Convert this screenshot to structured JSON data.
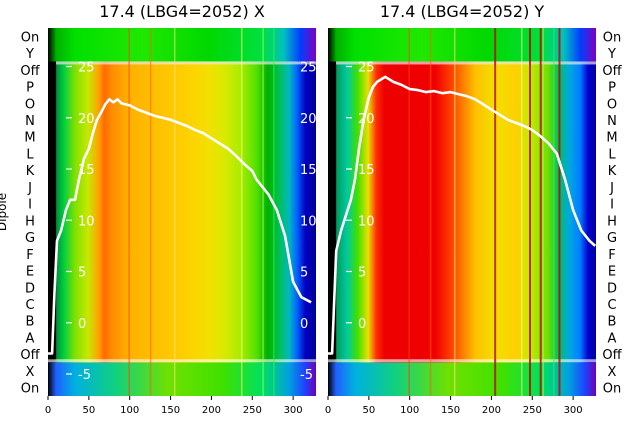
{
  "chart_data": [
    {
      "type": "heatmap",
      "title": "17.4 (LBG4=2052) X",
      "ylabel": "Dipole",
      "x_ticks": [
        0,
        50,
        100,
        150,
        200,
        250,
        300
      ],
      "xlim": [
        0,
        328
      ],
      "row_labels": [
        "On",
        "Y",
        "Off",
        "P",
        "O",
        "N",
        "M",
        "L",
        "K",
        "J",
        "I",
        "H",
        "G",
        "F",
        "E",
        "D",
        "C",
        "B",
        "A",
        "Off",
        "X",
        "On"
      ],
      "overlay_ticks": [
        -5,
        0,
        5,
        10,
        15,
        20,
        25
      ],
      "overlay_ylim": [
        -5,
        27
      ],
      "overlay_points": [
        [
          0,
          -3
        ],
        [
          5,
          -3
        ],
        [
          8,
          3
        ],
        [
          11,
          8
        ],
        [
          16,
          9
        ],
        [
          22,
          11
        ],
        [
          27,
          12
        ],
        [
          33,
          12
        ],
        [
          38,
          14
        ],
        [
          44,
          16
        ],
        [
          50,
          17
        ],
        [
          55,
          18.5
        ],
        [
          60,
          19.8
        ],
        [
          65,
          20.5
        ],
        [
          70,
          21.3
        ],
        [
          75,
          21.8
        ],
        [
          80,
          21.5
        ],
        [
          85,
          21.8
        ],
        [
          90,
          21.4
        ],
        [
          100,
          21.2
        ],
        [
          110,
          20.8
        ],
        [
          120,
          20.5
        ],
        [
          130,
          20.2
        ],
        [
          140,
          20
        ],
        [
          150,
          19.8
        ],
        [
          160,
          19.5
        ],
        [
          170,
          19.2
        ],
        [
          180,
          18.8
        ],
        [
          190,
          18.5
        ],
        [
          200,
          18
        ],
        [
          210,
          17.5
        ],
        [
          220,
          17
        ],
        [
          230,
          16.3
        ],
        [
          240,
          15.5
        ],
        [
          250,
          14.8
        ],
        [
          255,
          14
        ],
        [
          260,
          13.5
        ],
        [
          270,
          12.5
        ],
        [
          280,
          11
        ],
        [
          290,
          8.5
        ],
        [
          300,
          4
        ],
        [
          310,
          2.5
        ],
        [
          322,
          2
        ]
      ]
    },
    {
      "type": "heatmap",
      "title": "17.4 (LBG4=2052) Y",
      "ylabel": "",
      "x_ticks": [
        0,
        50,
        100,
        150,
        200,
        250,
        300
      ],
      "xlim": [
        0,
        328
      ],
      "row_labels": [
        "On",
        "Y",
        "Off",
        "P",
        "O",
        "N",
        "M",
        "L",
        "K",
        "J",
        "I",
        "H",
        "G",
        "F",
        "E",
        "D",
        "C",
        "B",
        "A",
        "Off",
        "X",
        "On"
      ],
      "overlay_ticks": [
        0,
        5,
        10,
        15,
        20,
        25
      ],
      "overlay_ylim": [
        -5,
        27
      ],
      "overlay_points": [
        [
          0,
          -3
        ],
        [
          5,
          -3
        ],
        [
          10,
          7
        ],
        [
          16,
          9
        ],
        [
          22,
          10.5
        ],
        [
          28,
          12
        ],
        [
          33,
          14
        ],
        [
          38,
          17
        ],
        [
          44,
          20
        ],
        [
          50,
          22
        ],
        [
          55,
          23
        ],
        [
          60,
          23.5
        ],
        [
          70,
          24
        ],
        [
          80,
          23.5
        ],
        [
          90,
          23.2
        ],
        [
          100,
          22.8
        ],
        [
          110,
          22.7
        ],
        [
          120,
          22.5
        ],
        [
          130,
          22.6
        ],
        [
          140,
          22.4
        ],
        [
          150,
          22.5
        ],
        [
          160,
          22.3
        ],
        [
          170,
          22.1
        ],
        [
          180,
          21.8
        ],
        [
          190,
          21.3
        ],
        [
          200,
          20.8
        ],
        [
          210,
          20.3
        ],
        [
          220,
          19.8
        ],
        [
          230,
          19.5
        ],
        [
          240,
          19.2
        ],
        [
          250,
          18.8
        ],
        [
          260,
          18.2
        ],
        [
          270,
          17.5
        ],
        [
          280,
          16.5
        ],
        [
          290,
          14
        ],
        [
          300,
          11
        ],
        [
          310,
          9
        ],
        [
          320,
          8
        ],
        [
          327,
          7.5
        ]
      ]
    }
  ],
  "colors": {
    "overlay_line": "#ffffff",
    "background": "#ffffff"
  }
}
